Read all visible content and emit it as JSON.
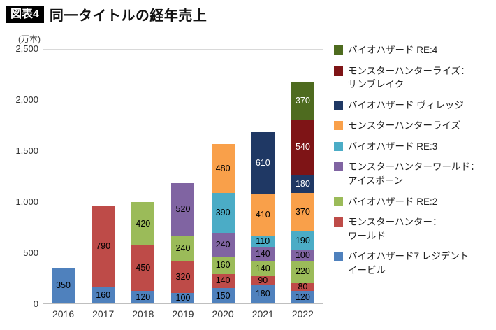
{
  "title": {
    "badge": "図表4",
    "text": "同一タイトルの経年売上"
  },
  "chart_data": {
    "type": "bar",
    "stacked": true,
    "unit_label": "(万本)",
    "categories": [
      "2016",
      "2017",
      "2018",
      "2019",
      "2020",
      "2021",
      "2022"
    ],
    "ylim": [
      0,
      2500
    ],
    "ytick_step": 500,
    "yticks": [
      "0",
      "500",
      "1,000",
      "1,500",
      "2,000",
      "2,500"
    ],
    "grid": "top-and-baseline-only",
    "legend_position": "right",
    "series": [
      {
        "name": "バイオハザード7 レジデント\nイービル",
        "color": "#4f81bd",
        "label_color": "#000000",
        "values": [
          350,
          160,
          120,
          100,
          150,
          180,
          120
        ]
      },
      {
        "name": "モンスターハンター：\nワールド",
        "color": "#be4b48",
        "label_color": "#000000",
        "values": [
          0,
          790,
          450,
          320,
          140,
          90,
          80
        ]
      },
      {
        "name": "バイオハザード RE:2",
        "color": "#9bbb59",
        "label_color": "#000000",
        "values": [
          0,
          0,
          420,
          240,
          160,
          140,
          220
        ]
      },
      {
        "name": "モンスターハンターワールド：\nアイスボーン",
        "color": "#8064a2",
        "label_color": "#000000",
        "values": [
          0,
          0,
          0,
          520,
          240,
          140,
          100
        ]
      },
      {
        "name": "バイオハザード RE:3",
        "color": "#4bacc6",
        "label_color": "#000000",
        "values": [
          0,
          0,
          0,
          0,
          390,
          110,
          190
        ]
      },
      {
        "name": "モンスターハンターライズ",
        "color": "#f9a04a",
        "label_color": "#000000",
        "values": [
          0,
          0,
          0,
          0,
          480,
          410,
          370
        ]
      },
      {
        "name": "バイオハザード ヴィレッジ",
        "color": "#1f3864",
        "label_color": "#ffffff",
        "values": [
          0,
          0,
          0,
          0,
          0,
          610,
          180
        ]
      },
      {
        "name": "モンスターハンターライズ：\nサンブレイク",
        "color": "#7e1416",
        "label_color": "#ffffff",
        "values": [
          0,
          0,
          0,
          0,
          0,
          0,
          540
        ]
      },
      {
        "name": "バイオハザード RE:4",
        "color": "#4e6b1f",
        "label_color": "#ffffff",
        "values": [
          0,
          0,
          0,
          0,
          0,
          0,
          370
        ]
      }
    ]
  }
}
